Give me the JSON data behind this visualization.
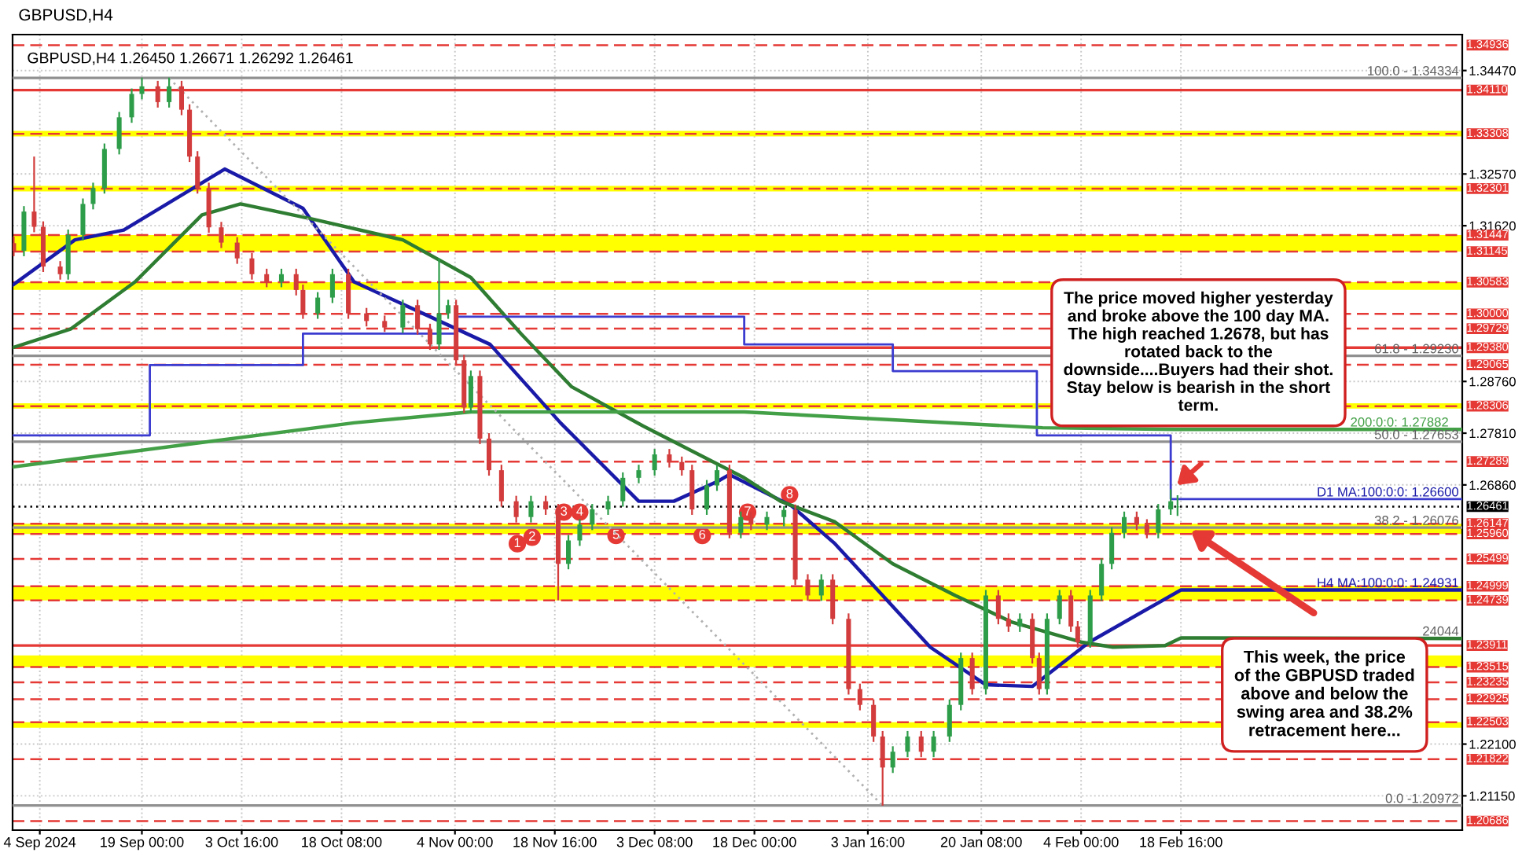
{
  "chart_data": {
    "type": "candlestick",
    "title": "GBPUSD,H4",
    "subtitle": "GBPUSD,H4 1.26450 1.26671 1.26292 1.26461",
    "x": [
      "2024-08-31T04:00",
      "2024-09-01T16:00",
      "2024-09-03T04:00",
      "2024-09-04T12:00",
      "2024-09-07T00:00",
      "2024-09-08T04:00",
      "2024-09-10T08:00",
      "2024-09-11T20:00",
      "2024-09-13T12:00",
      "2024-09-15T16:00",
      "2024-09-17T12:00",
      "2024-09-19T00:00",
      "2024-09-21T08:00",
      "2024-09-23T00:00",
      "2024-09-24T20:00",
      "2024-09-26T00:00",
      "2024-09-27T04:00",
      "2024-09-28T20:00",
      "2024-09-30T16:00",
      "2024-10-03T00:00",
      "2024-10-05T04:00",
      "2024-10-07T08:00",
      "2024-10-09T12:00",
      "2024-10-11T16:00",
      "2024-10-12T16:00",
      "2024-10-14T20:00",
      "2024-10-17T00:00",
      "2024-10-19T08:00",
      "2024-10-22T00:00",
      "2024-10-24T16:00",
      "2024-10-27T08:00",
      "2024-10-29T12:00",
      "2024-10-31T08:00",
      "2024-11-01T16:00",
      "2024-11-03T00:00",
      "2024-11-04T04:00",
      "2024-11-05T08:00",
      "2024-11-06T08:00",
      "2024-11-07T16:00",
      "2024-11-09T00:00",
      "2024-11-10T20:00",
      "2024-11-13T00:00",
      "2024-11-15T04:00",
      "2024-11-17T08:00",
      "2024-11-19T04:00",
      "2024-11-20T16:00",
      "2024-11-22T08:00",
      "2024-11-24T04:00",
      "2024-11-26T12:00",
      "2024-11-28T16:00",
      "2024-12-01T00:00",
      "2024-12-03T08:00",
      "2024-12-05T12:00",
      "2024-12-07T08:00",
      "2024-12-08T20:00",
      "2024-12-11T00:00",
      "2024-12-12T12:00",
      "2024-12-14T08:00",
      "2024-12-16T00:00",
      "2024-12-17T12:00",
      "2024-12-19T20:00",
      "2024-12-22T08:00",
      "2024-12-24T00:00",
      "2024-12-25T20:00",
      "2024-12-27T20:00",
      "2024-12-29T12:00",
      "2024-12-31T20:00",
      "2025-01-02T12:00",
      "2025-01-04T12:00",
      "2025-01-05T20:00",
      "2025-01-07T08:00",
      "2025-01-09T12:00",
      "2025-01-11T12:00",
      "2025-01-13T08:00",
      "2025-01-15T16:00",
      "2025-01-17T08:00",
      "2025-01-19T00:00",
      "2025-01-21T00:00",
      "2025-01-22T20:00",
      "2025-01-24T08:00",
      "2025-01-26T00:00",
      "2025-01-27T20:00",
      "2025-01-28T20:00",
      "2025-01-30T00:00",
      "2025-01-31T20:00",
      "2025-02-02T12:00",
      "2025-02-03T12:00",
      "2025-02-05T08:00",
      "2025-02-07T00:00",
      "2025-02-08T12:00",
      "2025-02-10T08:00",
      "2025-02-12T04:00",
      "2025-02-13T16:00",
      "2025-02-15T08:00",
      "2025-02-17T04:00",
      "2025-02-18T04:00"
    ],
    "ohlc": [
      [
        1.313,
        1.3142,
        1.3106,
        1.3116
      ],
      [
        1.3116,
        1.3198,
        1.3106,
        1.3188
      ],
      [
        1.3188,
        1.3289,
        1.315,
        1.316
      ],
      [
        1.316,
        1.317,
        1.3077,
        1.3087
      ],
      [
        1.3087,
        1.3097,
        1.3063,
        1.3073
      ],
      [
        1.3073,
        1.3155,
        1.3063,
        1.3145
      ],
      [
        1.3145,
        1.3212,
        1.3135,
        1.3202
      ],
      [
        1.3202,
        1.3241,
        1.3192,
        1.3231
      ],
      [
        1.3231,
        1.3313,
        1.3221,
        1.3303
      ],
      [
        1.3303,
        1.3371,
        1.3293,
        1.3361
      ],
      [
        1.3361,
        1.3414,
        1.3351,
        1.3404
      ],
      [
        1.3404,
        1.3434,
        1.3394,
        1.3418
      ],
      [
        1.3418,
        1.3428,
        1.3379,
        1.3389
      ],
      [
        1.3389,
        1.3434,
        1.3379,
        1.3418
      ],
      [
        1.3418,
        1.3428,
        1.3365,
        1.3375
      ],
      [
        1.3375,
        1.3385,
        1.3279,
        1.3289
      ],
      [
        1.3289,
        1.3299,
        1.3221,
        1.3231
      ],
      [
        1.3231,
        1.3241,
        1.3149,
        1.3159
      ],
      [
        1.3159,
        1.3169,
        1.3121,
        1.3131
      ],
      [
        1.3131,
        1.3141,
        1.3092,
        1.3102
      ],
      [
        1.3102,
        1.3112,
        1.3063,
        1.3073
      ],
      [
        1.3073,
        1.3083,
        1.3049,
        1.3059
      ],
      [
        1.3059,
        1.3083,
        1.3049,
        1.3073
      ],
      [
        1.3073,
        1.3083,
        1.3034,
        1.3044
      ],
      [
        1.3044,
        1.3054,
        1.2991,
        1.3001
      ],
      [
        1.3001,
        1.304,
        1.2991,
        1.303
      ],
      [
        1.303,
        1.3083,
        1.302,
        1.3073
      ],
      [
        1.3073,
        1.3083,
        1.2991,
        1.3001
      ],
      [
        1.3001,
        1.3011,
        1.2977,
        1.2987
      ],
      [
        1.2987,
        1.2997,
        1.2967,
        1.2975
      ],
      [
        1.2975,
        1.3026,
        1.2965,
        1.3016
      ],
      [
        1.3016,
        1.3026,
        1.2962,
        1.2972
      ],
      [
        1.2972,
        1.2982,
        1.2934,
        1.2944
      ],
      [
        1.2944,
        1.3102,
        1.2934,
        1.3001
      ],
      [
        1.3001,
        1.3026,
        1.2991,
        1.3016
      ],
      [
        1.3016,
        1.3026,
        1.2905,
        1.2915
      ],
      [
        1.2915,
        1.2925,
        1.2818,
        1.2828
      ],
      [
        1.2828,
        1.2896,
        1.2818,
        1.2886
      ],
      [
        1.2886,
        1.2896,
        1.2761,
        1.2771
      ],
      [
        1.2771,
        1.2781,
        1.2703,
        1.2713
      ],
      [
        1.2713,
        1.2723,
        1.2646,
        1.2656
      ],
      [
        1.2656,
        1.2666,
        1.2617,
        1.2627
      ],
      [
        1.2627,
        1.2666,
        1.2617,
        1.2656
      ],
      [
        1.2656,
        1.2666,
        1.2631,
        1.2641
      ],
      [
        1.2641,
        1.2651,
        1.2474,
        1.2541
      ],
      [
        1.2541,
        1.2594,
        1.2531,
        1.2584
      ],
      [
        1.2584,
        1.2623,
        1.2574,
        1.2613
      ],
      [
        1.2613,
        1.2651,
        1.2603,
        1.2641
      ],
      [
        1.2641,
        1.2666,
        1.2631,
        1.2656
      ],
      [
        1.2656,
        1.2709,
        1.2646,
        1.2699
      ],
      [
        1.2699,
        1.2723,
        1.2689,
        1.2713
      ],
      [
        1.2713,
        1.2752,
        1.2703,
        1.2742
      ],
      [
        1.2742,
        1.2752,
        1.2718,
        1.2728
      ],
      [
        1.2728,
        1.2738,
        1.2703,
        1.2713
      ],
      [
        1.2713,
        1.2723,
        1.2631,
        1.2641
      ],
      [
        1.2641,
        1.2695,
        1.2631,
        1.2685
      ],
      [
        1.2685,
        1.2723,
        1.2675,
        1.2713
      ],
      [
        1.2713,
        1.2723,
        1.2588,
        1.2598
      ],
      [
        1.2598,
        1.2637,
        1.2588,
        1.2627
      ],
      [
        1.2627,
        1.2637,
        1.2603,
        1.2613
      ],
      [
        1.2613,
        1.2637,
        1.2603,
        1.2627
      ],
      [
        1.2627,
        1.2647,
        1.261,
        1.264
      ],
      [
        1.264,
        1.265,
        1.2502,
        1.2512
      ],
      [
        1.2512,
        1.2522,
        1.2473,
        1.2483
      ],
      [
        1.2483,
        1.2522,
        1.2473,
        1.2512
      ],
      [
        1.2512,
        1.2522,
        1.243,
        1.244
      ],
      [
        1.244,
        1.245,
        1.2301,
        1.2311
      ],
      [
        1.2311,
        1.2321,
        1.2272,
        1.2282
      ],
      [
        1.2282,
        1.2292,
        1.2214,
        1.2224
      ],
      [
        1.2224,
        1.2234,
        1.2097,
        1.2167
      ],
      [
        1.2167,
        1.2206,
        1.2157,
        1.2196
      ],
      [
        1.2196,
        1.2234,
        1.2186,
        1.2224
      ],
      [
        1.2224,
        1.2234,
        1.2186,
        1.2196
      ],
      [
        1.2196,
        1.2234,
        1.2186,
        1.2224
      ],
      [
        1.2224,
        1.2292,
        1.2214,
        1.2282
      ],
      [
        1.2282,
        1.2378,
        1.2272,
        1.2368
      ],
      [
        1.2368,
        1.2378,
        1.2301,
        1.2311
      ],
      [
        1.2311,
        1.2493,
        1.2301,
        1.2483
      ],
      [
        1.2483,
        1.2493,
        1.243,
        1.244
      ],
      [
        1.244,
        1.245,
        1.2416,
        1.2426
      ],
      [
        1.2426,
        1.245,
        1.2416,
        1.244
      ],
      [
        1.244,
        1.245,
        1.2358,
        1.2368
      ],
      [
        1.2368,
        1.2378,
        1.2301,
        1.2311
      ],
      [
        1.2311,
        1.245,
        1.2301,
        1.244
      ],
      [
        1.244,
        1.2493,
        1.243,
        1.2483
      ],
      [
        1.2483,
        1.2493,
        1.2416,
        1.2426
      ],
      [
        1.2426,
        1.2436,
        1.2387,
        1.2397
      ],
      [
        1.2397,
        1.2493,
        1.2387,
        1.2483
      ],
      [
        1.2483,
        1.2551,
        1.2473,
        1.2541
      ],
      [
        1.2541,
        1.2608,
        1.2531,
        1.2598
      ],
      [
        1.2598,
        1.2637,
        1.2588,
        1.2627
      ],
      [
        1.2627,
        1.2637,
        1.2603,
        1.2613
      ],
      [
        1.2613,
        1.2623,
        1.2588,
        1.2598
      ],
      [
        1.2598,
        1.2651,
        1.2588,
        1.2641
      ],
      [
        1.2641,
        1.2678,
        1.2631,
        1.2656
      ],
      [
        1.2645,
        1.2667,
        1.2629,
        1.2646
      ]
    ],
    "series": [
      {
        "type": "line",
        "color": "#1a1aa8",
        "x": [
          "2024-08-31T00:00",
          "2024-09-09T04:00",
          "2024-09-16T08:00",
          "2024-10-01T04:00",
          "2024-10-12T16:00",
          "2024-10-20T04:00",
          "2024-10-31T20:00",
          "2024-11-09T04:00",
          "2024-11-19T12:00",
          "2024-12-01T00:00",
          "2024-12-06T04:00",
          "2024-12-12T16:00",
          "2024-12-14T08:00",
          "2024-12-23T12:00",
          "2024-12-29T20:00",
          "2025-01-12T20:00",
          "2025-01-21T00:00",
          "2025-01-27T20:00",
          "2025-02-05T04:00",
          "2025-02-13T04:00",
          "2025-02-18T16:00",
          "2025-04-01T00:00"
        ],
        "values": [
          1.3053,
          1.3136,
          1.3154,
          1.3266,
          1.3194,
          1.3059,
          1.2992,
          1.2944,
          1.28,
          1.2656,
          1.2656,
          1.2693,
          1.2705,
          1.2647,
          1.2578,
          1.2388,
          1.2319,
          1.2316,
          1.2397,
          1.2454,
          1.2493,
          1.2493
        ]
      },
      {
        "type": "line",
        "color": "#2e7d32",
        "x": [
          "2024-08-31T00:00",
          "2024-09-08T12:00",
          "2024-09-18T00:00",
          "2024-09-27T20:00",
          "2024-10-03T12:00",
          "2024-10-14T04:00",
          "2024-10-27T08:00",
          "2024-11-06T08:00",
          "2024-11-13T16:00",
          "2024-11-21T04:00",
          "2024-12-01T16:00",
          "2024-12-16T12:00",
          "2024-12-21T20:00",
          "2024-12-29T20:00",
          "2025-01-07T08:00",
          "2025-01-16T12:00",
          "2025-01-24T20:00",
          "2025-02-04T04:00",
          "2025-02-08T16:00",
          "2025-02-16T08:00",
          "2025-02-18T16:00",
          "2025-04-01T00:00"
        ],
        "values": [
          1.2938,
          1.2972,
          1.3059,
          1.3182,
          1.3202,
          1.3174,
          1.3136,
          1.3067,
          1.2964,
          1.2866,
          1.2794,
          1.2699,
          1.2656,
          1.2618,
          1.2541,
          1.2483,
          1.2434,
          1.2397,
          1.2388,
          1.2391,
          1.2405,
          1.2404
        ]
      },
      {
        "type": "step",
        "color": "#3b3bd0",
        "x": [
          "2024-08-31T00:00",
          "2024-09-20T04:00",
          "2024-10-12T16:00",
          "2024-11-04T04:00",
          "2024-11-13T16:00",
          "2024-12-16T12:00",
          "2025-01-07T08:00",
          "2025-01-28T12:00",
          "2025-02-17T04:00",
          "2025-04-01T00:00"
        ],
        "values": [
          1.2777,
          1.2906,
          1.2964,
          1.2995,
          1.2995,
          1.2944,
          1.2895,
          1.2777,
          1.266,
          1.266
        ]
      },
      {
        "type": "line",
        "color": "#43a047",
        "x": [
          "2024-08-31T00:00",
          "2024-10-20T04:00",
          "2024-11-06T08:00",
          "2024-12-16T12:00",
          "2025-01-29T08:00",
          "2025-02-17T20:00",
          "2025-04-01T00:00"
        ],
        "values": [
          1.2719,
          1.28,
          1.282,
          1.282,
          1.2791,
          1.2788,
          1.2788
        ]
      },
      {
        "type": "line",
        "color": "#b0b0b0",
        "line_style": "dotted",
        "x": [
          "2024-09-23T00:00",
          "2025-01-05T20:00"
        ],
        "values": [
          1.3433,
          1.2097
        ]
      }
    ],
    "xlim": [
      "2024-08-31T00:00",
      "2025-04-01T00:00"
    ],
    "ylim": [
      1.2052,
      1.3513
    ],
    "xticks": [
      {
        "value": "2024-09-04T00:00",
        "label": "4 Sep 2024"
      },
      {
        "value": "2024-09-19T00:00",
        "label": "19 Sep 00:00"
      },
      {
        "value": "2024-10-03T16:00",
        "label": "3 Oct 16:00"
      },
      {
        "value": "2024-10-18T08:00",
        "label": "18 Oct 08:00"
      },
      {
        "value": "2024-11-04T00:00",
        "label": "4 Nov 00:00"
      },
      {
        "value": "2024-11-18T16:00",
        "label": "18 Nov 16:00"
      },
      {
        "value": "2024-12-03T08:00",
        "label": "3 Dec 08:00"
      },
      {
        "value": "2024-12-18T00:00",
        "label": "18 Dec 00:00"
      },
      {
        "value": "2025-01-03T16:00",
        "label": "3 Jan 16:00"
      },
      {
        "value": "2025-01-20T08:00",
        "label": "20 Jan 08:00"
      },
      {
        "value": "2025-02-04T00:00",
        "label": "4 Feb 00:00"
      },
      {
        "value": "2025-02-18T16:00",
        "label": "18 Feb 16:00"
      }
    ],
    "yticks": [
      {
        "value": 1.3447,
        "label": "1.34470"
      },
      {
        "value": 1.3257,
        "label": "1.32570"
      },
      {
        "value": 1.3162,
        "label": "1.31620"
      },
      {
        "value": 1.2876,
        "label": "1.28760"
      },
      {
        "value": 1.2781,
        "label": "1.27810"
      },
      {
        "value": 1.2686,
        "label": "1.26860"
      },
      {
        "value": 1.221,
        "label": "1.22100"
      },
      {
        "value": 1.2115,
        "label": "1.21150"
      }
    ],
    "grid": true,
    "bands": [
      {
        "axis": "y",
        "from": 1.3326,
        "to": 1.3336,
        "color": "#ffff00"
      },
      {
        "axis": "y",
        "from": 1.3225,
        "to": 1.3235,
        "color": "#ffff00"
      },
      {
        "axis": "y",
        "from": 1.31145,
        "to": 1.31447,
        "color": "#ffff00"
      },
      {
        "axis": "y",
        "from": 1.3044,
        "to": 1.30583,
        "color": "#ffff00"
      },
      {
        "axis": "y",
        "from": 1.2826,
        "to": 1.2836,
        "color": "#ffff00"
      },
      {
        "axis": "y",
        "from": 1.2596,
        "to": 1.26147,
        "color": "#ffff00"
      },
      {
        "axis": "y",
        "from": 1.24739,
        "to": 1.24999,
        "color": "#ffff00"
      },
      {
        "axis": "y",
        "from": 1.23515,
        "to": 1.23729,
        "color": "#ffff00"
      },
      {
        "axis": "y",
        "from": 1.224,
        "to": 1.22503,
        "color": "#ffff00"
      }
    ],
    "ref_lines": [
      {
        "axis": "y",
        "value": 1.34936,
        "label": "1.34936",
        "color": "#e53935",
        "line_style": "dashed"
      },
      {
        "axis": "y",
        "value": 1.3411,
        "label": "1.34110",
        "color": "#e53935",
        "line_style": "solid"
      },
      {
        "axis": "y",
        "value": 1.33308,
        "label": "1.33308",
        "color": "#e53935",
        "line_style": "dashed"
      },
      {
        "axis": "y",
        "value": 1.32301,
        "label": "1.32301",
        "color": "#e53935",
        "line_style": "dashed"
      },
      {
        "axis": "y",
        "value": 1.31447,
        "label": "1.31447",
        "color": "#e53935",
        "line_style": "dashed"
      },
      {
        "axis": "y",
        "value": 1.31145,
        "label": "1.31145",
        "color": "#e53935",
        "line_style": "dashed"
      },
      {
        "axis": "y",
        "value": 1.30583,
        "label": "1.30583",
        "color": "#e53935",
        "line_style": "dashed"
      },
      {
        "axis": "y",
        "value": 1.3,
        "label": "1.30000",
        "color": "#e53935",
        "line_style": "dashed"
      },
      {
        "axis": "y",
        "value": 1.29729,
        "label": "1.29729",
        "color": "#e53935",
        "line_style": "dashed"
      },
      {
        "axis": "y",
        "value": 1.2938,
        "label": "1.29380",
        "color": "#e53935",
        "line_style": "solid"
      },
      {
        "axis": "y",
        "value": 1.29065,
        "label": "1.29065",
        "color": "#e53935",
        "line_style": "dashed"
      },
      {
        "axis": "y",
        "value": 1.28306,
        "label": "1.28306",
        "color": "#e53935",
        "line_style": "dashed"
      },
      {
        "axis": "y",
        "value": 1.27289,
        "label": "1.27289",
        "color": "#e53935",
        "line_style": "dashed"
      },
      {
        "axis": "y",
        "value": 1.26461,
        "label": "1.26461",
        "color": "#000000",
        "line_style": "dotted"
      },
      {
        "axis": "y",
        "value": 1.26147,
        "label": "1.26147",
        "color": "#e53935",
        "line_style": "dashed"
      },
      {
        "axis": "y",
        "value": 1.2596,
        "label": "1.25960",
        "color": "#e53935",
        "line_style": "dashed"
      },
      {
        "axis": "y",
        "value": 1.25499,
        "label": "1.25499",
        "color": "#e53935",
        "line_style": "dashed"
      },
      {
        "axis": "y",
        "value": 1.24999,
        "label": "1.24999",
        "color": "#e53935",
        "line_style": "dashed"
      },
      {
        "axis": "y",
        "value": 1.24739,
        "label": "1.24739",
        "color": "#e53935",
        "line_style": "dashed"
      },
      {
        "axis": "y",
        "value": 1.23911,
        "label": "1.23911",
        "color": "#e53935",
        "line_style": "solid"
      },
      {
        "axis": "y",
        "value": 1.23515,
        "label": "1.23515",
        "color": "#e53935",
        "line_style": "dashed"
      },
      {
        "axis": "y",
        "value": 1.23235,
        "label": "1.23235",
        "color": "#e53935",
        "line_style": "dashed"
      },
      {
        "axis": "y",
        "value": 1.22925,
        "label": "1.22925",
        "color": "#e53935",
        "line_style": "dashed"
      },
      {
        "axis": "y",
        "value": 1.22503,
        "label": "1.22503",
        "color": "#e53935",
        "line_style": "dashed"
      },
      {
        "axis": "y",
        "value": 1.21822,
        "label": "1.21822",
        "color": "#e53935",
        "line_style": "dashed"
      },
      {
        "axis": "y",
        "value": 1.20686,
        "label": "1.20686",
        "color": "#e53935",
        "line_style": "dashed"
      },
      {
        "axis": "y",
        "value": 1.34334,
        "color": "#909090",
        "line_style": "solid"
      },
      {
        "axis": "y",
        "value": 1.2923,
        "color": "#909090",
        "line_style": "solid"
      },
      {
        "axis": "y",
        "value": 1.27653,
        "color": "#909090",
        "line_style": "solid"
      },
      {
        "axis": "y",
        "value": 1.26076,
        "color": "#909090",
        "line_style": "solid"
      },
      {
        "axis": "y",
        "value": 1.20972,
        "color": "#909090",
        "line_style": "solid"
      }
    ],
    "annotations": [
      {
        "text": "100.0 - 1.34334",
        "x": "2025-03-31T12:00",
        "y": 1.34334
      },
      {
        "text": "61.8 - 1.29230",
        "x": "2025-03-31T12:00",
        "y": 1.2923
      },
      {
        "text": "50.0 - 1.27653",
        "x": "2025-03-31T12:00",
        "y": 1.27653
      },
      {
        "text": "38.2 - 1.26076",
        "x": "2025-03-31T12:00",
        "y": 1.26076
      },
      {
        "text": "0.0 -1.20972",
        "x": "2025-03-31T12:00",
        "y": 1.20972
      },
      {
        "text": "D1 MA:100:0:0: 1.26600",
        "x": "2025-03-31T12:00",
        "y": 1.266
      },
      {
        "text": "200:0:0: 1.27882",
        "x": "2025-03-30T00:00",
        "y": 1.27882
      },
      {
        "text": "H4 MA:100:0:0: 1.24931",
        "x": "2025-03-31T12:00",
        "y": 1.24931
      },
      {
        "text": "24044",
        "x": "2025-03-31T12:00",
        "y": 1.24044
      },
      {
        "text": "1",
        "x": "2024-11-13T04:00",
        "y": 1.2578
      },
      {
        "text": "2",
        "x": "2024-11-15T08:00",
        "y": 1.259
      },
      {
        "text": "3",
        "x": "2024-11-20T00:00",
        "y": 1.2636
      },
      {
        "text": "4",
        "x": "2024-11-22T08:00",
        "y": 1.2636
      },
      {
        "text": "5",
        "x": "2024-11-27T16:00",
        "y": 1.2593
      },
      {
        "text": "6",
        "x": "2024-12-10T08:00",
        "y": 1.2593
      },
      {
        "text": "7",
        "x": "2024-12-17T00:00",
        "y": 1.2636
      },
      {
        "text": "8",
        "x": "2024-12-23T04:00",
        "y": 1.2668
      },
      "The price moved higher yesterday\nand broke above the 100 day MA.\nThe high reached 1.2678, but has\nrotated back to the\ndownside....Buyers had their shot.\nStay below is bearish in the short\nterm.",
      "This week, the price\nof the GBPUSD traded\nabove and below the\nswing area and 38.2%\nretracement here..."
    ]
  }
}
